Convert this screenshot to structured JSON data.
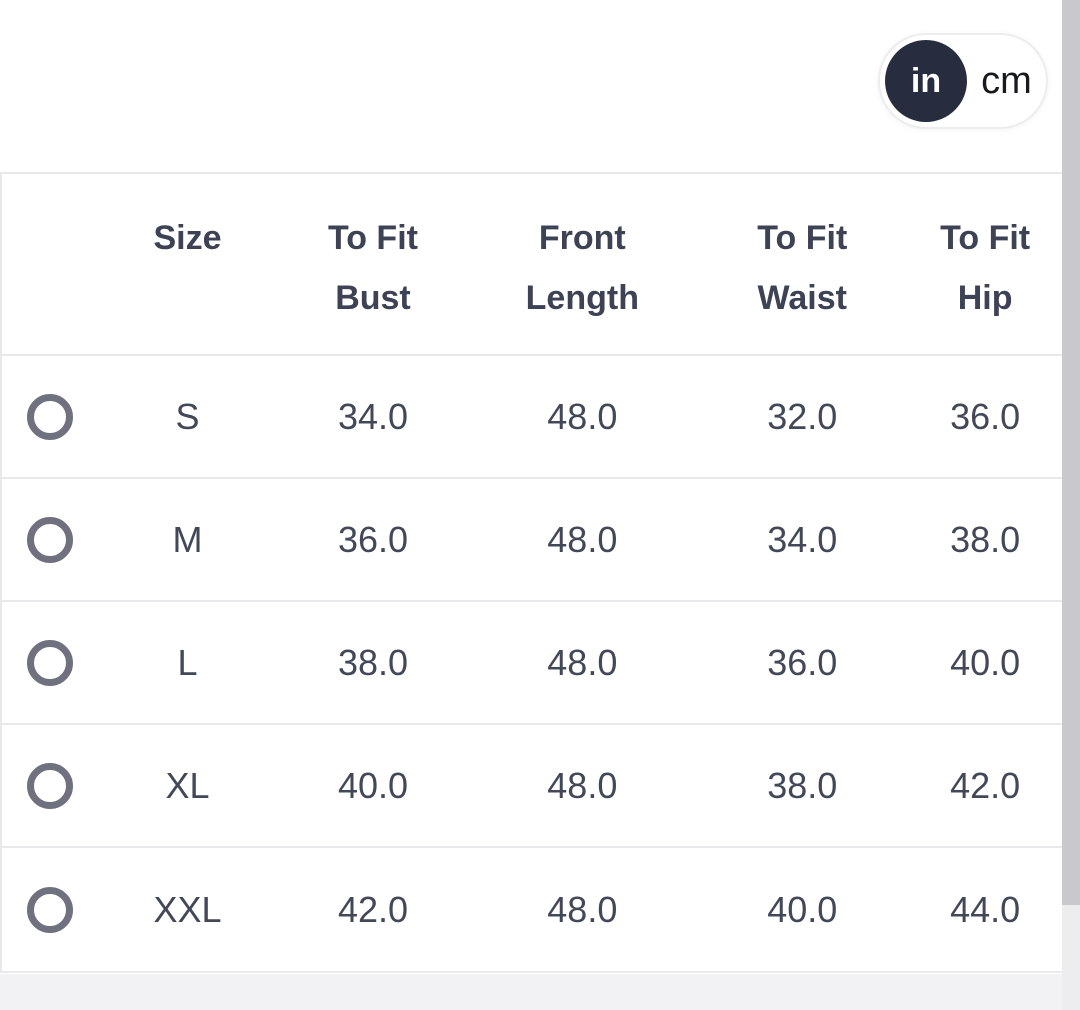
{
  "unit_toggle": {
    "options": [
      {
        "label": "in",
        "selected": true
      },
      {
        "label": "cm",
        "selected": false
      }
    ]
  },
  "table": {
    "headers": [
      {
        "line1": "Size",
        "line2": ""
      },
      {
        "line1": "To Fit",
        "line2": "Bust"
      },
      {
        "line1": "Front",
        "line2": "Length"
      },
      {
        "line1": "To Fit",
        "line2": "Waist"
      },
      {
        "line1": "To Fit",
        "line2": "Hip"
      }
    ],
    "rows": [
      {
        "size": "S",
        "to_fit_bust": "34.0",
        "front_length": "48.0",
        "to_fit_waist": "32.0",
        "to_fit_hip": "36.0",
        "selected": false
      },
      {
        "size": "M",
        "to_fit_bust": "36.0",
        "front_length": "48.0",
        "to_fit_waist": "34.0",
        "to_fit_hip": "38.0",
        "selected": false
      },
      {
        "size": "L",
        "to_fit_bust": "38.0",
        "front_length": "48.0",
        "to_fit_waist": "36.0",
        "to_fit_hip": "40.0",
        "selected": false
      },
      {
        "size": "XL",
        "to_fit_bust": "40.0",
        "front_length": "48.0",
        "to_fit_waist": "38.0",
        "to_fit_hip": "42.0",
        "selected": false
      },
      {
        "size": "XXL",
        "to_fit_bust": "42.0",
        "front_length": "48.0",
        "to_fit_waist": "40.0",
        "to_fit_hip": "44.0",
        "selected": false
      }
    ]
  },
  "colors": {
    "accent_dark": "#272d3f",
    "header_text": "#3d4254",
    "cell_text": "#434858",
    "radio_border": "#6f717e",
    "row_border": "#e9e9ec",
    "footer_bg": "#f2f2f4",
    "scrollbar_thumb": "#c9c9cd",
    "scrollbar_track": "#ededef"
  }
}
